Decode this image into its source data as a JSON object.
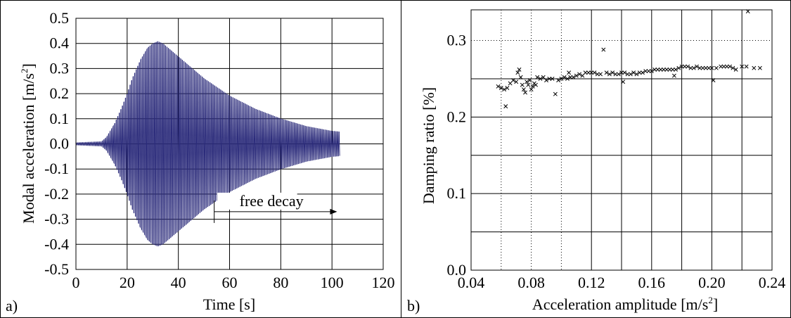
{
  "chart_data": [
    {
      "type": "line",
      "panel_label": "a)",
      "xlabel": "Time [s]",
      "ylabel_main": "Modal acceleration [m/s",
      "ylabel_sup": "2",
      "ylabel_end": "]",
      "xlim": [
        0,
        120
      ],
      "ylim": [
        -0.5,
        0.5
      ],
      "xticks": [
        0,
        20,
        40,
        60,
        80,
        100,
        120
      ],
      "xtick_labels": [
        "0",
        "20",
        "40",
        "60",
        "80",
        "100",
        "120"
      ],
      "yticks": [
        -0.5,
        -0.4,
        -0.3,
        -0.2,
        -0.1,
        0.0,
        0.1,
        0.2,
        0.3,
        0.4,
        0.5
      ],
      "ytick_labels": [
        "-0.5",
        "-0.4",
        "-0.3",
        "-0.2",
        "-0.1",
        "0.0",
        "0.1",
        "0.2",
        "0.3",
        "0.4",
        "0.5"
      ],
      "grid": true,
      "color": "#2a2a7a",
      "series": [
        {
          "envelope_time": [
            0,
            10,
            12,
            15,
            18,
            20,
            22,
            25,
            28,
            30,
            32,
            34,
            36,
            40,
            45,
            50,
            55,
            60,
            70,
            80,
            90,
            100,
            103
          ],
          "envelope_amplitude": [
            0.005,
            0.01,
            0.03,
            0.09,
            0.17,
            0.23,
            0.3,
            0.38,
            0.44,
            0.46,
            0.47,
            0.46,
            0.44,
            0.4,
            0.35,
            0.3,
            0.26,
            0.22,
            0.16,
            0.115,
            0.08,
            0.058,
            0.055
          ],
          "end_time": 103
        }
      ],
      "annotation": {
        "text": "free decay",
        "x_start": 54,
        "x_end": 102,
        "y": -0.27
      }
    },
    {
      "type": "scatter",
      "panel_label": "b)",
      "xlabel_main": "Acceleration amplitude [m/s",
      "xlabel_sup": "2",
      "xlabel_end": "]",
      "ylabel": "Damping ratio [%]",
      "xlim": [
        0.04,
        0.24
      ],
      "ylim": [
        0.0,
        0.34
      ],
      "xticks": [
        0.04,
        0.08,
        0.12,
        0.16,
        0.2,
        0.24
      ],
      "xtick_labels": [
        "0.04",
        "0.08",
        "0.12",
        "0.16",
        "0.20",
        "0.24"
      ],
      "yticks": [
        0.0,
        0.1,
        0.2,
        0.3
      ],
      "ytick_labels": [
        "0.0",
        "0.1",
        "0.2",
        "0.3"
      ],
      "grid": true,
      "marker": "x",
      "points": [
        [
          0.058,
          0.24
        ],
        [
          0.06,
          0.238
        ],
        [
          0.062,
          0.236
        ],
        [
          0.063,
          0.214
        ],
        [
          0.064,
          0.238
        ],
        [
          0.066,
          0.244
        ],
        [
          0.068,
          0.248
        ],
        [
          0.07,
          0.246
        ],
        [
          0.071,
          0.258
        ],
        [
          0.072,
          0.262
        ],
        [
          0.073,
          0.252
        ],
        [
          0.074,
          0.242
        ],
        [
          0.075,
          0.236
        ],
        [
          0.076,
          0.232
        ],
        [
          0.077,
          0.246
        ],
        [
          0.078,
          0.242
        ],
        [
          0.079,
          0.248
        ],
        [
          0.08,
          0.236
        ],
        [
          0.081,
          0.24
        ],
        [
          0.082,
          0.244
        ],
        [
          0.083,
          0.242
        ],
        [
          0.084,
          0.252
        ],
        [
          0.086,
          0.25
        ],
        [
          0.088,
          0.252
        ],
        [
          0.09,
          0.248
        ],
        [
          0.092,
          0.25
        ],
        [
          0.094,
          0.25
        ],
        [
          0.096,
          0.23
        ],
        [
          0.098,
          0.248
        ],
        [
          0.1,
          0.25
        ],
        [
          0.102,
          0.252
        ],
        [
          0.104,
          0.25
        ],
        [
          0.105,
          0.258
        ],
        [
          0.106,
          0.252
        ],
        [
          0.108,
          0.252
        ],
        [
          0.11,
          0.254
        ],
        [
          0.112,
          0.256
        ],
        [
          0.114,
          0.254
        ],
        [
          0.116,
          0.258
        ],
        [
          0.118,
          0.258
        ],
        [
          0.12,
          0.258
        ],
        [
          0.122,
          0.258
        ],
        [
          0.124,
          0.256
        ],
        [
          0.126,
          0.256
        ],
        [
          0.128,
          0.288
        ],
        [
          0.13,
          0.258
        ],
        [
          0.132,
          0.256
        ],
        [
          0.134,
          0.258
        ],
        [
          0.136,
          0.256
        ],
        [
          0.138,
          0.256
        ],
        [
          0.14,
          0.258
        ],
        [
          0.141,
          0.246
        ],
        [
          0.142,
          0.258
        ],
        [
          0.144,
          0.256
        ],
        [
          0.146,
          0.256
        ],
        [
          0.148,
          0.258
        ],
        [
          0.15,
          0.256
        ],
        [
          0.152,
          0.258
        ],
        [
          0.154,
          0.258
        ],
        [
          0.156,
          0.26
        ],
        [
          0.158,
          0.26
        ],
        [
          0.16,
          0.26
        ],
        [
          0.162,
          0.262
        ],
        [
          0.164,
          0.262
        ],
        [
          0.166,
          0.262
        ],
        [
          0.168,
          0.262
        ],
        [
          0.17,
          0.262
        ],
        [
          0.172,
          0.262
        ],
        [
          0.174,
          0.262
        ],
        [
          0.175,
          0.254
        ],
        [
          0.176,
          0.262
        ],
        [
          0.178,
          0.264
        ],
        [
          0.18,
          0.266
        ],
        [
          0.182,
          0.266
        ],
        [
          0.184,
          0.266
        ],
        [
          0.186,
          0.264
        ],
        [
          0.188,
          0.264
        ],
        [
          0.19,
          0.266
        ],
        [
          0.192,
          0.264
        ],
        [
          0.194,
          0.264
        ],
        [
          0.196,
          0.264
        ],
        [
          0.198,
          0.264
        ],
        [
          0.2,
          0.264
        ],
        [
          0.201,
          0.248
        ],
        [
          0.203,
          0.264
        ],
        [
          0.206,
          0.266
        ],
        [
          0.208,
          0.266
        ],
        [
          0.21,
          0.266
        ],
        [
          0.212,
          0.266
        ],
        [
          0.214,
          0.264
        ],
        [
          0.216,
          0.262
        ],
        [
          0.22,
          0.266
        ],
        [
          0.223,
          0.266
        ],
        [
          0.224,
          0.338
        ],
        [
          0.228,
          0.264
        ],
        [
          0.232,
          0.264
        ]
      ]
    }
  ]
}
